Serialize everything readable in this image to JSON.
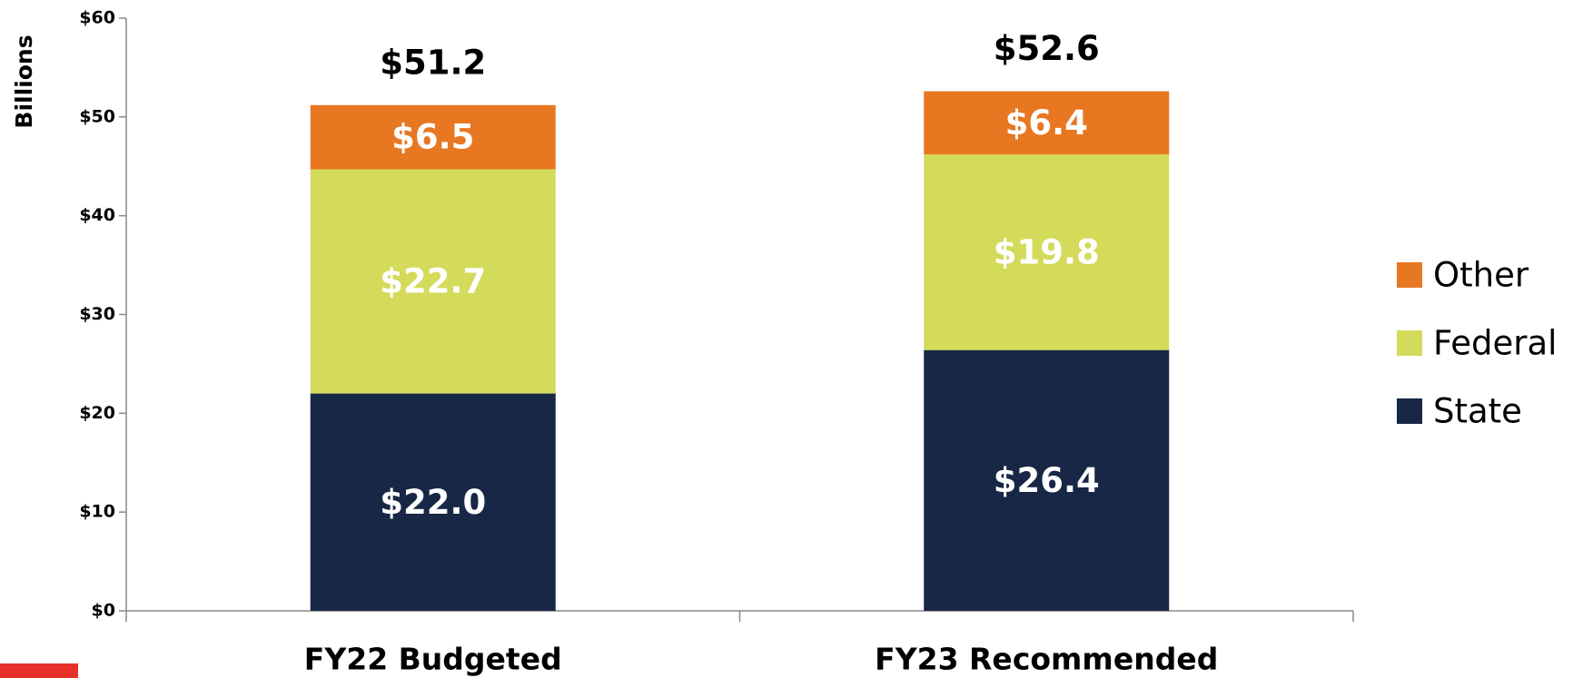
{
  "chart_data": {
    "type": "stacked_bar",
    "y_label": "Billions",
    "categories": [
      "FY22 Budgeted",
      "FY23 Recommended"
    ],
    "series": [
      {
        "name": "State",
        "color": "#172745",
        "values": [
          22.0,
          26.4
        ],
        "value_labels": [
          "$22.0",
          "$26.4"
        ]
      },
      {
        "name": "Federal",
        "color": "#d4da5a",
        "values": [
          22.7,
          19.8
        ],
        "value_labels": [
          "$22.7",
          "$19.8"
        ]
      },
      {
        "name": "Other",
        "color": "#e87722",
        "values": [
          6.5,
          6.4
        ],
        "value_labels": [
          "$6.5",
          "$6.4"
        ]
      }
    ],
    "totals": {
      "values": [
        51.2,
        52.6
      ],
      "value_labels": [
        "$51.2",
        "$52.6"
      ]
    },
    "ylim": [
      0,
      60
    ],
    "yticks": [
      {
        "value": 0,
        "label": "$0"
      },
      {
        "value": 10,
        "label": "$10"
      },
      {
        "value": 20,
        "label": "$20"
      },
      {
        "value": 30,
        "label": "$30"
      },
      {
        "value": 40,
        "label": "$40"
      },
      {
        "value": 50,
        "label": "$50"
      },
      {
        "value": 60,
        "label": "$60"
      }
    ],
    "grid": false,
    "legend": "right"
  }
}
